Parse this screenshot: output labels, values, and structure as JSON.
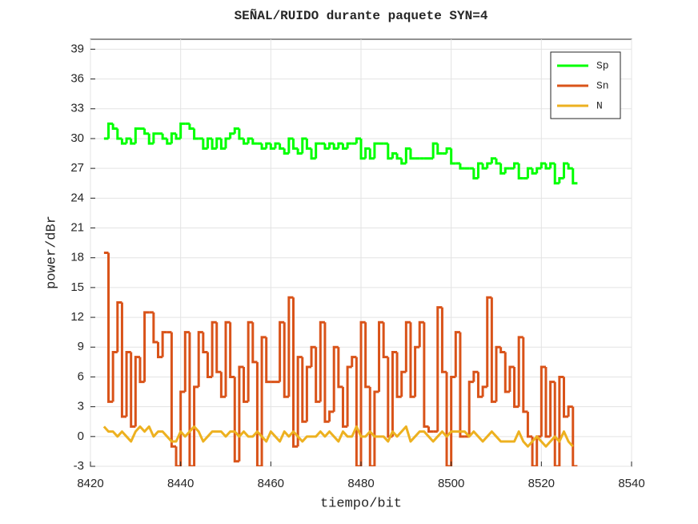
{
  "chart_data": {
    "type": "line",
    "title": "SEÑAL/RUIDO durante paquete SYN=4",
    "x_label": "tiempo/bit",
    "y_label": "power/dBr",
    "x": [
      8423,
      8424,
      8425,
      8426,
      8427,
      8428,
      8429,
      8430,
      8431,
      8432,
      8433,
      8434,
      8435,
      8436,
      8437,
      8438,
      8439,
      8440,
      8441,
      8442,
      8443,
      8444,
      8445,
      8446,
      8447,
      8448,
      8449,
      8450,
      8451,
      8452,
      8453,
      8454,
      8455,
      8456,
      8457,
      8458,
      8459,
      8460,
      8461,
      8462,
      8463,
      8464,
      8465,
      8466,
      8467,
      8468,
      8469,
      8470,
      8471,
      8472,
      8473,
      8474,
      8475,
      8476,
      8477,
      8478,
      8479,
      8480,
      8481,
      8482,
      8483,
      8484,
      8485,
      8486,
      8487,
      8488,
      8489,
      8490,
      8491,
      8492,
      8493,
      8494,
      8495,
      8496,
      8497,
      8498,
      8499,
      8500,
      8501,
      8502,
      8503,
      8504,
      8505,
      8506,
      8507,
      8508,
      8509,
      8510,
      8511,
      8512,
      8513,
      8514,
      8515,
      8516,
      8517,
      8518,
      8519,
      8520,
      8521,
      8522,
      8523,
      8524,
      8525,
      8526,
      8527
    ],
    "series": [
      {
        "name": "Sp",
        "color": "#00ff00",
        "drawstyle": "steps",
        "values": [
          30,
          31.5,
          31,
          30,
          29.5,
          30,
          29.5,
          31,
          31,
          30.5,
          29.5,
          30.5,
          30.5,
          30,
          29.5,
          30.5,
          30,
          31.5,
          31.5,
          31,
          30,
          30,
          29,
          30,
          29,
          30,
          29,
          30,
          30.5,
          31,
          30,
          29.5,
          30,
          29.5,
          29.5,
          29,
          29.5,
          29,
          29.5,
          29,
          28.5,
          30,
          29,
          28.5,
          30,
          29,
          28,
          29.5,
          29.5,
          29,
          29.5,
          29,
          29.5,
          29,
          29.5,
          29.5,
          30,
          28,
          29,
          28,
          29.5,
          29.5,
          29.5,
          28,
          28.5,
          28,
          27.5,
          29,
          28,
          28,
          28,
          28,
          28,
          29.5,
          28.5,
          28.5,
          29,
          27.5,
          27.5,
          27,
          27,
          27,
          26,
          27.5,
          27,
          27.5,
          28,
          27.5,
          26.5,
          27,
          27,
          27.5,
          26,
          26,
          27,
          26.5,
          27,
          27.5,
          27,
          27.5,
          25.5,
          26,
          27.5,
          27,
          25.5
        ]
      },
      {
        "name": "Sn",
        "color": "#d95319",
        "drawstyle": "steps",
        "values": [
          18.5,
          3.5,
          8.5,
          13.5,
          2,
          8.5,
          1,
          8,
          5.5,
          12.5,
          12.5,
          9.5,
          8,
          10.5,
          10.5,
          -1,
          -3,
          4.5,
          10.5,
          -3,
          5,
          10.5,
          8.5,
          6,
          11.5,
          6.5,
          4,
          11.5,
          6,
          -2.5,
          7,
          3.5,
          11.5,
          7.5,
          -3,
          10,
          5.5,
          5.5,
          5.5,
          11.5,
          4,
          14,
          -1,
          8,
          1.5,
          7,
          9,
          3.5,
          11.5,
          1.5,
          2.5,
          9,
          5,
          1,
          7,
          8,
          -3,
          11.5,
          5,
          -3,
          4.5,
          11.5,
          8,
          0,
          8.5,
          4,
          6.5,
          11.5,
          4,
          9,
          11.5,
          1,
          0.5,
          0.5,
          13,
          6.5,
          -3,
          6,
          10.5,
          0,
          0,
          5.5,
          6.5,
          4,
          5,
          14,
          3.5,
          9,
          8.5,
          4.5,
          7,
          3,
          10,
          2.5,
          0,
          -3,
          0,
          7,
          0,
          5.5,
          -3,
          6,
          2,
          3,
          -3
        ]
      },
      {
        "name": "N",
        "color": "#edb120",
        "drawstyle": "default",
        "values": [
          1,
          0.5,
          0.5,
          0,
          0.5,
          0,
          -0.5,
          0.5,
          1,
          0.5,
          1,
          0,
          0.5,
          0.5,
          0,
          -0.5,
          -0.5,
          0.5,
          0,
          0.5,
          1,
          0.5,
          -0.5,
          0,
          0.5,
          0.5,
          0.5,
          0,
          0.5,
          0.5,
          0,
          0.5,
          0,
          0,
          0.5,
          0,
          -0.5,
          0.5,
          0,
          -0.5,
          0.5,
          0,
          0.5,
          0,
          -0.5,
          0,
          0,
          0,
          0.5,
          0,
          0.5,
          0,
          -0.5,
          0.5,
          0,
          0,
          1,
          0,
          0,
          0.5,
          0,
          0,
          0,
          -0.5,
          0.5,
          0,
          0.5,
          1,
          -0.5,
          0,
          0.5,
          0.5,
          0,
          -0.5,
          0,
          0.5,
          0,
          0.5,
          0.5,
          0.5,
          0.5,
          0,
          0.5,
          0,
          -0.5,
          0,
          0.5,
          0,
          -0.5,
          -0.5,
          -0.5,
          -0.5,
          0.5,
          -0.5,
          -1,
          -0.5,
          0,
          -0.5,
          -1,
          -0.5,
          0,
          -0.5,
          0.5,
          -0.5,
          -1
        ]
      }
    ],
    "xlim": [
      8420,
      8540
    ],
    "xticks": [
      8420,
      8440,
      8460,
      8480,
      8500,
      8520,
      8540
    ],
    "ylim": [
      -3,
      40
    ],
    "yticks": [
      -3,
      0,
      3,
      6,
      9,
      12,
      15,
      18,
      21,
      24,
      27,
      30,
      33,
      36,
      39
    ],
    "grid": true,
    "legend": "upper right"
  }
}
